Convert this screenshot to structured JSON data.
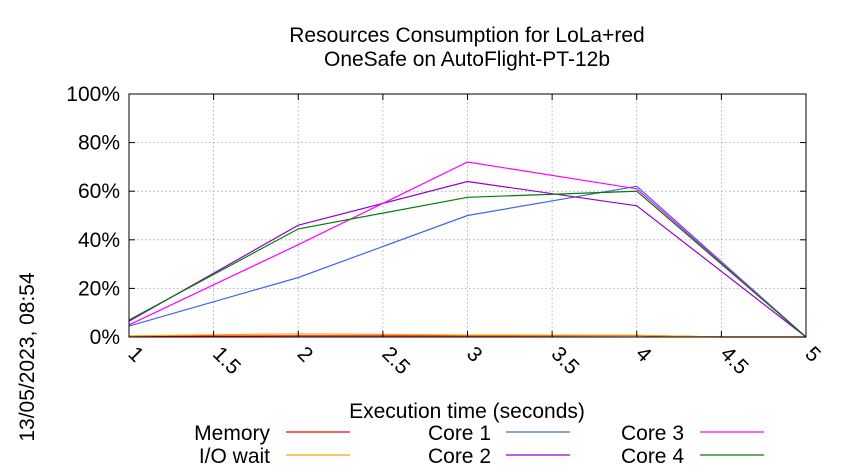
{
  "chart_data": {
    "type": "line",
    "title_line1": "Resources Consumption for LoLa+red",
    "title_line2": "OneSafe on AutoFlight-PT-12b",
    "xlabel": "Execution time (seconds)",
    "ylabel": "",
    "timestamp": "13/05/2023, 08:54",
    "xlim": [
      1,
      5
    ],
    "ylim": [
      0,
      100
    ],
    "x_ticks": [
      1,
      1.5,
      2,
      2.5,
      3,
      3.5,
      4,
      4.5,
      5
    ],
    "x_tick_labels": [
      "1",
      "1.5",
      "2",
      "2.5",
      "3",
      "3.5",
      "4",
      "4.5",
      "5"
    ],
    "y_ticks": [
      0,
      20,
      40,
      60,
      80,
      100
    ],
    "y_tick_labels": [
      "0%",
      "20%",
      "40%",
      "60%",
      "80%",
      "100%"
    ],
    "grid": true,
    "legend_position": "bottom",
    "series": [
      {
        "name": "Memory",
        "color": "#ff0000",
        "x": [
          1,
          2,
          3,
          4,
          4.5,
          5
        ],
        "y": [
          0.3,
          0.5,
          0.5,
          0.6,
          0,
          0
        ]
      },
      {
        "name": "I/O wait",
        "color": "#ffa500",
        "x": [
          1,
          2,
          3,
          4,
          4.5,
          5
        ],
        "y": [
          0.5,
          1.3,
          0.8,
          0.7,
          0,
          0
        ]
      },
      {
        "name": "Core 1",
        "color": "#4169e1",
        "x": [
          1,
          2,
          3,
          4,
          5
        ],
        "y": [
          4.5,
          24.5,
          50,
          62,
          0
        ]
      },
      {
        "name": "Core 2",
        "color": "#9400d3",
        "x": [
          1,
          2,
          3,
          4,
          5
        ],
        "y": [
          6.5,
          46,
          64,
          54,
          0
        ]
      },
      {
        "name": "Core 3",
        "color": "#ff00ff",
        "x": [
          1,
          2,
          3,
          4,
          5
        ],
        "y": [
          5,
          38,
          72,
          61,
          0
        ]
      },
      {
        "name": "Core 4",
        "color": "#008000",
        "x": [
          1,
          2,
          3,
          4,
          5
        ],
        "y": [
          7,
          44.5,
          57.5,
          60,
          0
        ]
      }
    ]
  }
}
